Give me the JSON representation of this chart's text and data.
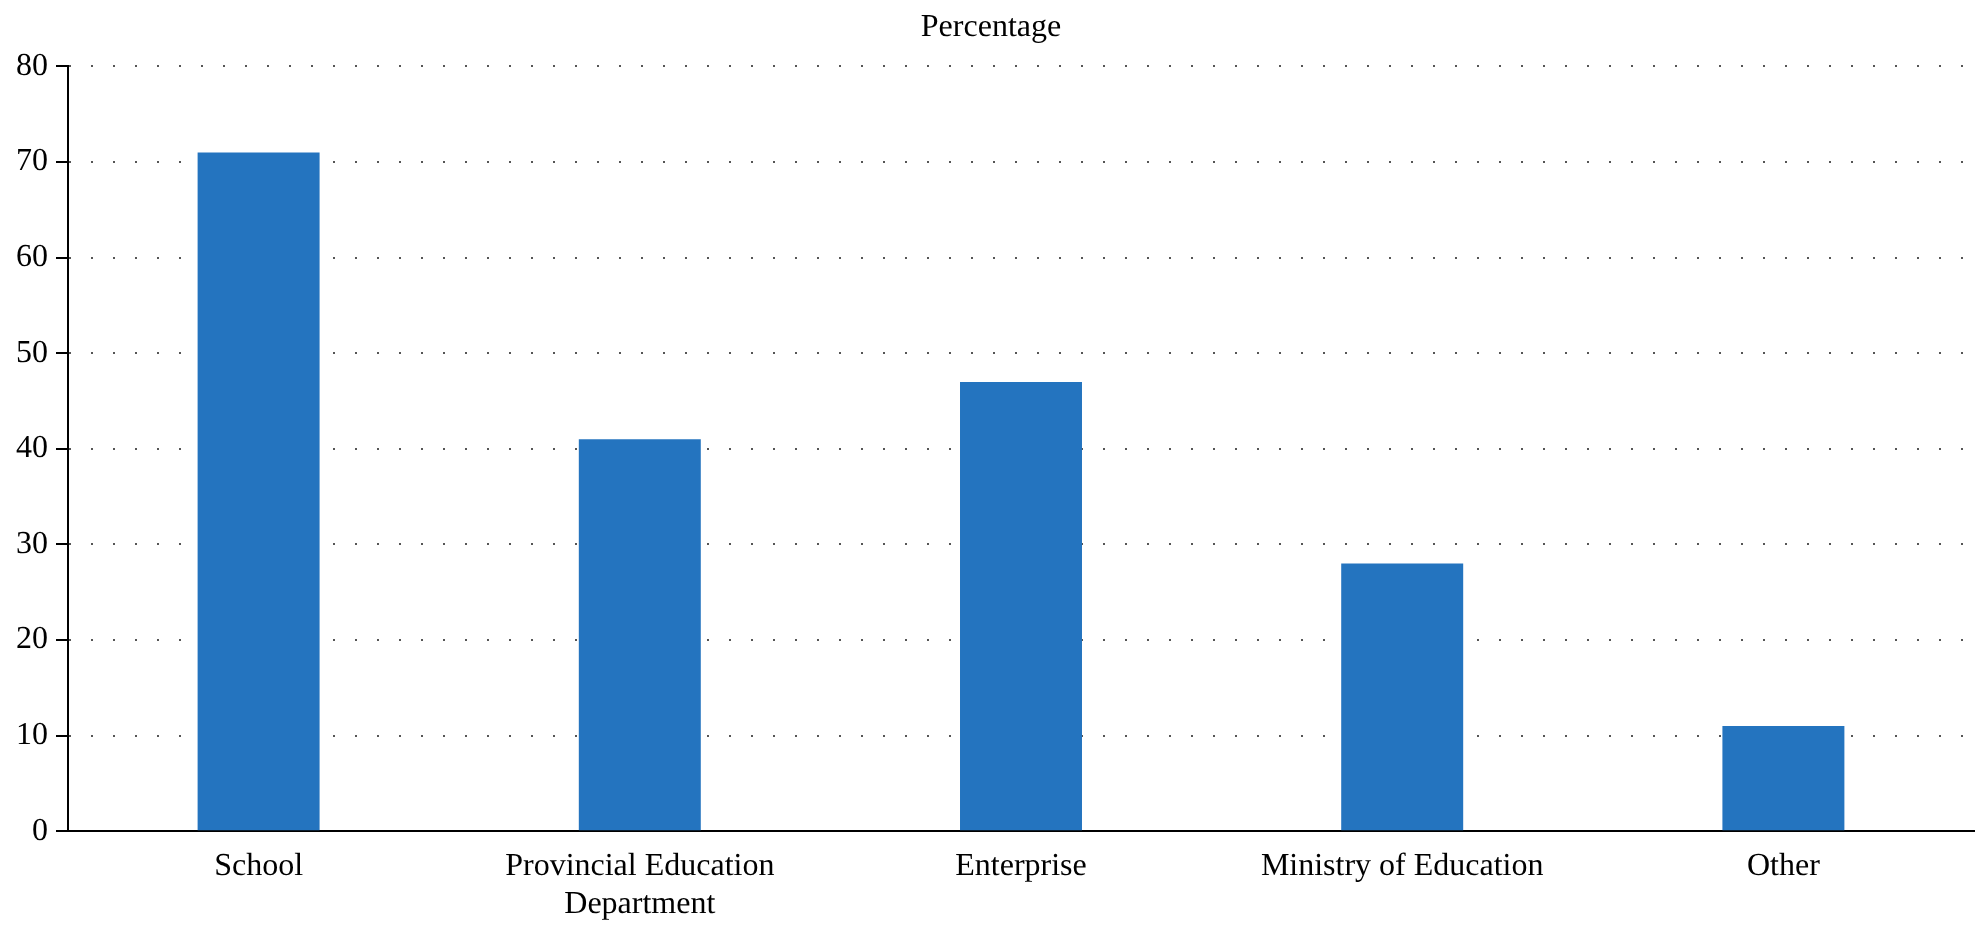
{
  "chart_data": {
    "type": "bar",
    "title": "Percentage",
    "categories": [
      "School",
      "Provincial Education Department",
      "Enterprise",
      "Ministry of Education",
      "Other"
    ],
    "values": [
      71,
      41,
      47,
      28,
      11
    ],
    "color": "#2474bf",
    "ylim": [
      0,
      80
    ],
    "yticks": [
      0,
      10,
      20,
      30,
      40,
      50,
      60,
      70,
      80
    ],
    "grid": "y",
    "legend": false
  }
}
